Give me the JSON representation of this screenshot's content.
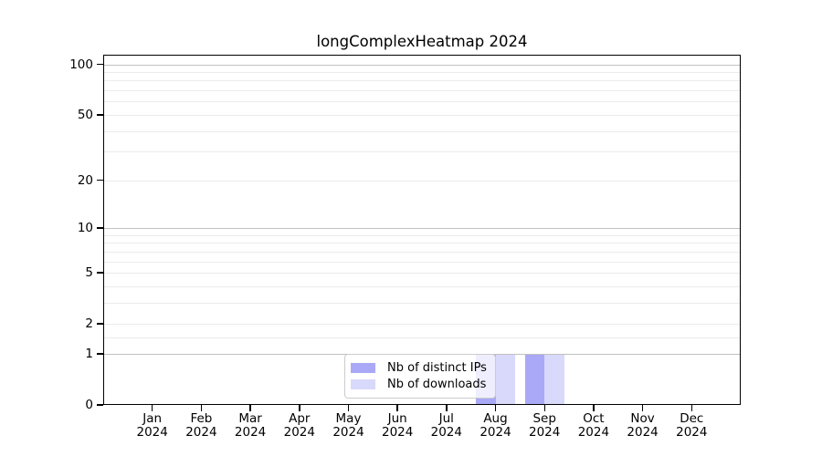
{
  "figure": {
    "background": "#ffffff"
  },
  "chart_data": {
    "type": "bar",
    "title": "longComplexHeatmap 2024",
    "categories": [
      "Jan",
      "Feb",
      "Mar",
      "Apr",
      "May",
      "Jun",
      "Jul",
      "Aug",
      "Sep",
      "Oct",
      "Nov",
      "Dec"
    ],
    "category_year": "2024",
    "series": [
      {
        "name": "Nb of distinct IPs",
        "color": "#a9a9f7",
        "values": [
          0,
          0,
          0,
          0,
          0,
          0,
          0,
          1,
          1,
          0,
          0,
          0
        ]
      },
      {
        "name": "Nb of downloads",
        "color": "#d9d9fb",
        "values": [
          0,
          0,
          0,
          0,
          0,
          0,
          0,
          1,
          1,
          0,
          0,
          0
        ]
      }
    ],
    "xlabel": "",
    "ylabel": "",
    "yscale": "log1p",
    "ylim": [
      0,
      114
    ],
    "yticks": [
      0,
      1,
      2,
      5,
      10,
      20,
      50,
      100
    ],
    "ytick_labels": [
      "0",
      "1",
      "2",
      "5",
      "10",
      "20",
      "50",
      "100"
    ],
    "major_gridlines": [
      1,
      10,
      100
    ],
    "minor_gridlines": [
      1.5,
      2,
      3,
      4,
      5,
      6,
      7,
      8,
      9,
      20,
      30,
      40,
      50,
      60,
      70,
      80,
      90
    ],
    "grid": true,
    "legend_position": "lower center",
    "colors": {
      "spine": "#000000",
      "tick_label": "#000000",
      "major_grid": "#c0c0c0",
      "minor_grid": "#ebebeb",
      "legend_border": "#cccccc",
      "legend_background": "rgba(255,255,255,0.8)"
    }
  }
}
